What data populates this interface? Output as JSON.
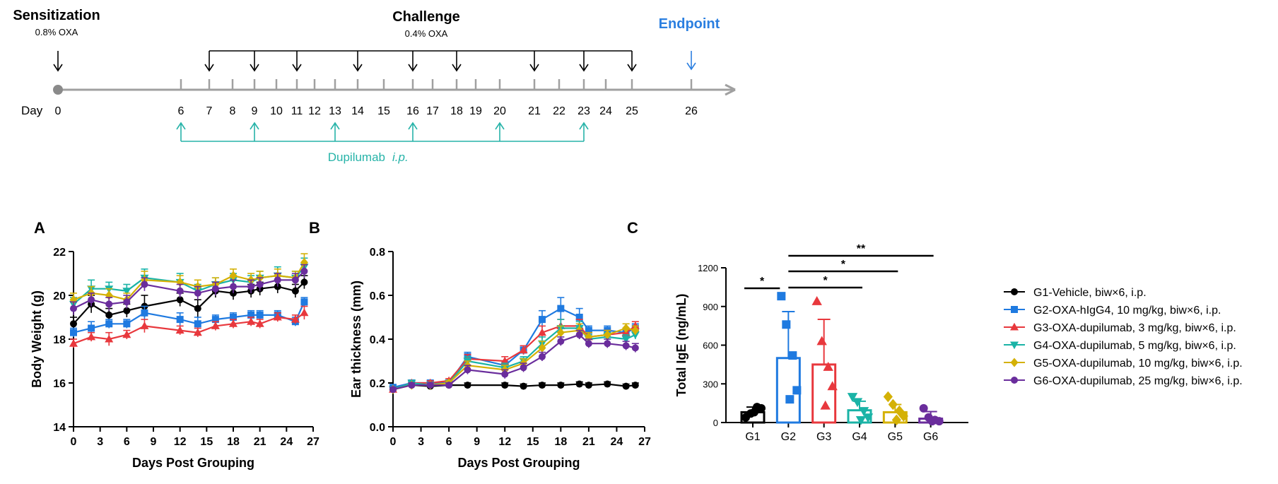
{
  "timeline": {
    "sensitization_title": "Sensitization",
    "sensitization_sub": "0.8% OXA",
    "challenge_title": "Challenge",
    "challenge_sub": "0.4% OXA",
    "endpoint_title": "Endpoint",
    "day_label": "Day",
    "ticks": [
      0,
      6,
      7,
      8,
      9,
      10,
      11,
      12,
      13,
      14,
      15,
      16,
      17,
      18,
      19,
      20,
      21,
      22,
      23,
      24,
      25,
      26
    ],
    "challenge_days": [
      7,
      9,
      11,
      14,
      16,
      18,
      21,
      23,
      25
    ],
    "dosing_days": [
      6,
      9,
      13,
      16,
      20,
      23
    ],
    "dosing_label": "Dupilumab",
    "dosing_route": "i.p.",
    "endpoint_day": 26,
    "colors": {
      "challenge": "#000000",
      "endpoint": "#2b7fe0",
      "dosing": "#26b3a8",
      "axis": "#a0a0a0"
    }
  },
  "legend": [
    {
      "label": "G1-Vehicle, biw×6, i.p.",
      "color": "#000000",
      "marker": "circle"
    },
    {
      "label": "G2-OXA-hIgG4, 10 mg/kg, biw×6, i.p.",
      "color": "#1f7ae0",
      "marker": "square"
    },
    {
      "label": "G3-OXA-dupilumab, 3 mg/kg, biw×6, i.p.",
      "color": "#e8383d",
      "marker": "triangle-up"
    },
    {
      "label": "G4-OXA-dupilumab, 5 mg/kg, biw×6, i.p.",
      "color": "#1ab3a6",
      "marker": "triangle-down"
    },
    {
      "label": "G5-OXA-dupilumab, 10 mg/kg, biw×6, i.p.",
      "color": "#d4b106",
      "marker": "diamond"
    },
    {
      "label": "G6-OXA-dupilumab, 25 mg/kg, biw×6, i.p.",
      "color": "#6a2d9c",
      "marker": "circle"
    }
  ],
  "chart_data": [
    {
      "panel": "A",
      "type": "line",
      "xlabel": "Days Post Grouping",
      "ylabel": "Body Weight (g)",
      "xlim": [
        0,
        27
      ],
      "ylim": [
        14,
        22
      ],
      "xticks": [
        0,
        3,
        6,
        9,
        12,
        15,
        18,
        21,
        24,
        27
      ],
      "yticks": [
        14,
        16,
        18,
        20,
        22
      ],
      "x": [
        0,
        2,
        4,
        6,
        8,
        12,
        14,
        16,
        18,
        20,
        21,
        23,
        25,
        26
      ],
      "series": [
        {
          "values": [
            18.7,
            19.6,
            19.1,
            19.3,
            19.5,
            19.8,
            19.4,
            20.2,
            20.1,
            20.2,
            20.3,
            20.4,
            20.2,
            20.6
          ],
          "err": [
            0.3,
            0.4,
            0.3,
            0.3,
            0.5,
            0.3,
            0.4,
            0.3,
            0.3,
            0.3,
            0.3,
            0.3,
            0.3,
            0.3
          ]
        },
        {
          "values": [
            18.3,
            18.5,
            18.7,
            18.7,
            19.2,
            18.9,
            18.7,
            18.9,
            19.0,
            19.1,
            19.1,
            19.1,
            18.8,
            19.7
          ],
          "err": [
            0.2,
            0.3,
            0.2,
            0.2,
            0.3,
            0.3,
            0.3,
            0.2,
            0.2,
            0.2,
            0.2,
            0.2,
            0.2,
            0.2
          ]
        },
        {
          "values": [
            17.8,
            18.1,
            18.0,
            18.2,
            18.6,
            18.4,
            18.3,
            18.6,
            18.7,
            18.8,
            18.7,
            19.0,
            18.9,
            19.2
          ],
          "err": [
            0.2,
            0.2,
            0.3,
            0.2,
            0.3,
            0.2,
            0.2,
            0.2,
            0.2,
            0.2,
            0.2,
            0.2,
            0.2,
            0.3
          ]
        },
        {
          "values": [
            19.6,
            20.3,
            20.3,
            20.2,
            20.8,
            20.6,
            20.2,
            20.5,
            20.7,
            20.6,
            20.8,
            20.9,
            20.8,
            21.3
          ],
          "err": [
            0.3,
            0.4,
            0.3,
            0.3,
            0.4,
            0.4,
            0.3,
            0.3,
            0.3,
            0.3,
            0.3,
            0.4,
            0.3,
            0.4
          ]
        },
        {
          "values": [
            19.8,
            20.1,
            20.0,
            19.8,
            20.7,
            20.6,
            20.4,
            20.5,
            20.9,
            20.7,
            20.8,
            20.9,
            20.8,
            21.5
          ],
          "err": [
            0.3,
            0.3,
            0.3,
            0.3,
            0.4,
            0.3,
            0.3,
            0.3,
            0.3,
            0.3,
            0.3,
            0.3,
            0.3,
            0.4
          ]
        },
        {
          "values": [
            19.4,
            19.8,
            19.6,
            19.7,
            20.5,
            20.2,
            20.1,
            20.3,
            20.4,
            20.4,
            20.5,
            20.7,
            20.7,
            21.1
          ],
          "err": [
            0.3,
            0.3,
            0.3,
            0.3,
            0.3,
            0.3,
            0.3,
            0.3,
            0.3,
            0.3,
            0.3,
            0.3,
            0.3,
            0.3
          ]
        }
      ]
    },
    {
      "panel": "B",
      "type": "line",
      "xlabel": "Days Post Grouping",
      "ylabel": "Ear thickness (mm)",
      "xlim": [
        0,
        27
      ],
      "ylim": [
        0.0,
        0.8
      ],
      "xticks": [
        0,
        3,
        6,
        9,
        12,
        15,
        18,
        21,
        24,
        27
      ],
      "yticks": [
        0.0,
        0.2,
        0.4,
        0.6,
        0.8
      ],
      "x": [
        0,
        2,
        4,
        6,
        8,
        12,
        14,
        16,
        18,
        20,
        21,
        23,
        25,
        26
      ],
      "series": [
        {
          "values": [
            0.18,
            0.19,
            0.185,
            0.19,
            0.19,
            0.19,
            0.185,
            0.19,
            0.19,
            0.195,
            0.19,
            0.195,
            0.185,
            0.19
          ],
          "err": [
            0.01,
            0.01,
            0.01,
            0.01,
            0.01,
            0.01,
            0.01,
            0.01,
            0.01,
            0.01,
            0.01,
            0.01,
            0.01,
            0.01
          ]
        },
        {
          "values": [
            0.18,
            0.2,
            0.2,
            0.2,
            0.32,
            0.28,
            0.35,
            0.49,
            0.54,
            0.5,
            0.44,
            0.44,
            0.43,
            0.45
          ],
          "err": [
            0.01,
            0.01,
            0.01,
            0.01,
            0.02,
            0.02,
            0.02,
            0.04,
            0.05,
            0.04,
            0.02,
            0.02,
            0.02,
            0.02
          ]
        },
        {
          "values": [
            0.17,
            0.2,
            0.2,
            0.21,
            0.31,
            0.3,
            0.35,
            0.43,
            0.46,
            0.46,
            0.41,
            0.42,
            0.43,
            0.46
          ],
          "err": [
            0.01,
            0.01,
            0.01,
            0.01,
            0.02,
            0.02,
            0.02,
            0.03,
            0.03,
            0.03,
            0.02,
            0.02,
            0.02,
            0.02
          ]
        },
        {
          "values": [
            0.17,
            0.2,
            0.19,
            0.2,
            0.3,
            0.27,
            0.3,
            0.38,
            0.45,
            0.45,
            0.4,
            0.41,
            0.4,
            0.42
          ],
          "err": [
            0.01,
            0.01,
            0.01,
            0.01,
            0.02,
            0.02,
            0.02,
            0.03,
            0.04,
            0.03,
            0.02,
            0.02,
            0.02,
            0.02
          ]
        },
        {
          "values": [
            0.17,
            0.19,
            0.19,
            0.2,
            0.28,
            0.26,
            0.29,
            0.36,
            0.43,
            0.44,
            0.41,
            0.42,
            0.45,
            0.44
          ],
          "err": [
            0.01,
            0.01,
            0.01,
            0.01,
            0.02,
            0.02,
            0.02,
            0.03,
            0.03,
            0.03,
            0.02,
            0.02,
            0.02,
            0.02
          ]
        },
        {
          "values": [
            0.17,
            0.19,
            0.19,
            0.19,
            0.26,
            0.24,
            0.27,
            0.32,
            0.39,
            0.42,
            0.38,
            0.38,
            0.37,
            0.36
          ],
          "err": [
            0.01,
            0.01,
            0.01,
            0.01,
            0.02,
            0.02,
            0.02,
            0.02,
            0.02,
            0.02,
            0.02,
            0.02,
            0.02,
            0.02
          ]
        }
      ]
    },
    {
      "panel": "C",
      "type": "bar",
      "ylabel": "Total IgE (ng/mL)",
      "ylim": [
        0,
        1200
      ],
      "yticks": [
        0,
        300,
        600,
        900,
        1200
      ],
      "categories": [
        "G1",
        "G2",
        "G3",
        "G4",
        "G5",
        "G6"
      ],
      "values": [
        80,
        500,
        450,
        95,
        80,
        30
      ],
      "err": [
        40,
        360,
        350,
        70,
        60,
        55
      ],
      "points": [
        [
          40,
          70,
          120,
          110,
          80
        ],
        [
          980,
          760,
          520,
          250,
          180
        ],
        [
          940,
          630,
          430,
          280,
          130
        ],
        [
          200,
          160,
          90,
          40,
          20
        ],
        [
          200,
          140,
          90,
          50,
          20
        ],
        [
          110,
          40,
          20,
          10,
          10
        ]
      ],
      "significance": [
        {
          "from": "G1",
          "to": "G2",
          "label": "*"
        },
        {
          "from": "G2",
          "to": "G4",
          "label": "*"
        },
        {
          "from": "G2",
          "to": "G5",
          "label": "*"
        },
        {
          "from": "G2",
          "to": "G6",
          "label": "**"
        }
      ]
    }
  ]
}
